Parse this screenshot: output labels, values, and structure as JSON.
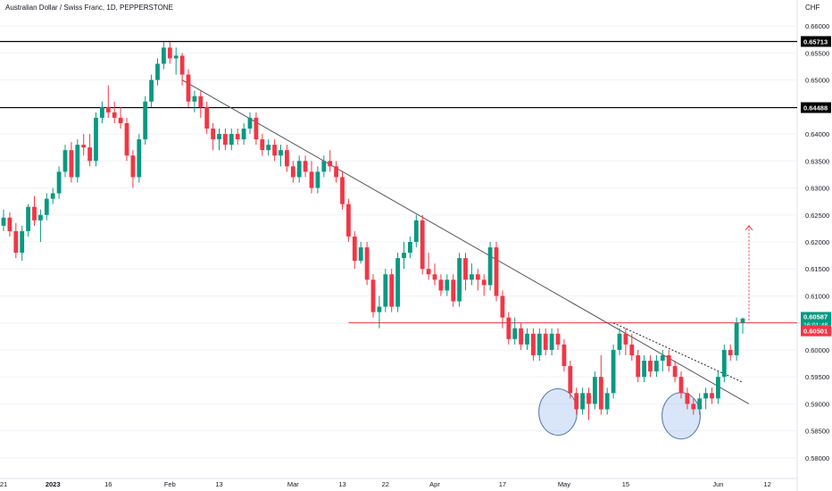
{
  "header": {
    "title": "Australian Dollar / Swiss Franc, 1D, PEPPERSTONE",
    "currency": "CHF"
  },
  "chart_data": {
    "type": "candlestick",
    "symbol": "AUDCHF",
    "timeframe": "1D",
    "ylim": [
      0.5775,
      0.6625
    ],
    "y_ticks": [
      "0.66000",
      "0.65500",
      "0.65000",
      "0.64500",
      "0.64000",
      "0.63500",
      "0.63000",
      "0.62500",
      "0.62000",
      "0.61500",
      "0.61000",
      "0.60500",
      "0.60000",
      "0.59500",
      "0.59000",
      "0.58500",
      "0.58000"
    ],
    "x_labels": [
      {
        "text": "21",
        "x": 0
      },
      {
        "text": "2023",
        "x": 8
      },
      {
        "text": "16",
        "x": 17
      },
      {
        "text": "Feb",
        "x": 27
      },
      {
        "text": "13",
        "x": 35
      },
      {
        "text": "Mar",
        "x": 47
      },
      {
        "text": "13",
        "x": 55
      },
      {
        "text": "22",
        "x": 62
      },
      {
        "text": "Apr",
        "x": 70
      },
      {
        "text": "17",
        "x": 81
      },
      {
        "text": "May",
        "x": 91
      },
      {
        "text": "15",
        "x": 101
      },
      {
        "text": "Jun",
        "x": 116
      },
      {
        "text": "12",
        "x": 124
      }
    ],
    "candles_ohlc": [
      [
        0.623,
        0.626,
        0.622,
        0.6245
      ],
      [
        0.6245,
        0.6255,
        0.621,
        0.622
      ],
      [
        0.622,
        0.6235,
        0.617,
        0.618
      ],
      [
        0.618,
        0.623,
        0.6165,
        0.622
      ],
      [
        0.622,
        0.627,
        0.621,
        0.6265
      ],
      [
        0.6265,
        0.6285,
        0.623,
        0.624
      ],
      [
        0.624,
        0.626,
        0.62,
        0.625
      ],
      [
        0.625,
        0.629,
        0.624,
        0.628
      ],
      [
        0.628,
        0.63,
        0.627,
        0.629
      ],
      [
        0.629,
        0.634,
        0.628,
        0.633
      ],
      [
        0.633,
        0.638,
        0.632,
        0.637
      ],
      [
        0.637,
        0.6385,
        0.631,
        0.632
      ],
      [
        0.632,
        0.639,
        0.631,
        0.638
      ],
      [
        0.638,
        0.64,
        0.636,
        0.6375
      ],
      [
        0.6375,
        0.64,
        0.634,
        0.635
      ],
      [
        0.635,
        0.644,
        0.634,
        0.643
      ],
      [
        0.643,
        0.646,
        0.642,
        0.645
      ],
      [
        0.645,
        0.649,
        0.643,
        0.644
      ],
      [
        0.644,
        0.646,
        0.642,
        0.643
      ],
      [
        0.643,
        0.645,
        0.641,
        0.642
      ],
      [
        0.642,
        0.643,
        0.635,
        0.636
      ],
      [
        0.636,
        0.637,
        0.63,
        0.632
      ],
      [
        0.632,
        0.64,
        0.631,
        0.639
      ],
      [
        0.639,
        0.647,
        0.638,
        0.646
      ],
      [
        0.646,
        0.651,
        0.645,
        0.65
      ],
      [
        0.65,
        0.654,
        0.649,
        0.653
      ],
      [
        0.653,
        0.657,
        0.652,
        0.656
      ],
      [
        0.656,
        0.657,
        0.653,
        0.654
      ],
      [
        0.654,
        0.656,
        0.651,
        0.6545
      ],
      [
        0.6545,
        0.655,
        0.649,
        0.651
      ],
      [
        0.651,
        0.652,
        0.645,
        0.646
      ],
      [
        0.646,
        0.648,
        0.644,
        0.647
      ],
      [
        0.647,
        0.648,
        0.643,
        0.645
      ],
      [
        0.645,
        0.646,
        0.64,
        0.641
      ],
      [
        0.641,
        0.642,
        0.637,
        0.639
      ],
      [
        0.639,
        0.641,
        0.637,
        0.64
      ],
      [
        0.64,
        0.641,
        0.637,
        0.638
      ],
      [
        0.638,
        0.641,
        0.637,
        0.64
      ],
      [
        0.64,
        0.641,
        0.638,
        0.639
      ],
      [
        0.639,
        0.642,
        0.638,
        0.641
      ],
      [
        0.641,
        0.644,
        0.64,
        0.643
      ],
      [
        0.643,
        0.644,
        0.638,
        0.639
      ],
      [
        0.639,
        0.64,
        0.636,
        0.637
      ],
      [
        0.637,
        0.639,
        0.636,
        0.638
      ],
      [
        0.638,
        0.639,
        0.635,
        0.636
      ],
      [
        0.636,
        0.638,
        0.634,
        0.637
      ],
      [
        0.637,
        0.638,
        0.633,
        0.634
      ],
      [
        0.634,
        0.635,
        0.631,
        0.632
      ],
      [
        0.632,
        0.636,
        0.631,
        0.635
      ],
      [
        0.635,
        0.636,
        0.632,
        0.633
      ],
      [
        0.633,
        0.635,
        0.629,
        0.63
      ],
      [
        0.63,
        0.634,
        0.629,
        0.633
      ],
      [
        0.633,
        0.636,
        0.632,
        0.635
      ],
      [
        0.635,
        0.637,
        0.633,
        0.634
      ],
      [
        0.634,
        0.635,
        0.631,
        0.632
      ],
      [
        0.632,
        0.633,
        0.626,
        0.627
      ],
      [
        0.627,
        0.628,
        0.62,
        0.621
      ],
      [
        0.621,
        0.622,
        0.615,
        0.6165
      ],
      [
        0.6165,
        0.62,
        0.616,
        0.619
      ],
      [
        0.619,
        0.62,
        0.612,
        0.613
      ],
      [
        0.613,
        0.614,
        0.606,
        0.607
      ],
      [
        0.607,
        0.61,
        0.604,
        0.608
      ],
      [
        0.608,
        0.615,
        0.607,
        0.614
      ],
      [
        0.614,
        0.615,
        0.607,
        0.608
      ],
      [
        0.608,
        0.618,
        0.607,
        0.617
      ],
      [
        0.617,
        0.62,
        0.615,
        0.618
      ],
      [
        0.618,
        0.621,
        0.617,
        0.62
      ],
      [
        0.62,
        0.625,
        0.619,
        0.624
      ],
      [
        0.624,
        0.625,
        0.614,
        0.615
      ],
      [
        0.615,
        0.618,
        0.613,
        0.614
      ],
      [
        0.614,
        0.616,
        0.612,
        0.613
      ],
      [
        0.613,
        0.614,
        0.61,
        0.611
      ],
      [
        0.611,
        0.614,
        0.61,
        0.613
      ],
      [
        0.613,
        0.614,
        0.608,
        0.609
      ],
      [
        0.609,
        0.618,
        0.608,
        0.617
      ],
      [
        0.617,
        0.618,
        0.611,
        0.613
      ],
      [
        0.613,
        0.616,
        0.612,
        0.614
      ],
      [
        0.614,
        0.615,
        0.611,
        0.613
      ],
      [
        0.613,
        0.614,
        0.61,
        0.612
      ],
      [
        0.612,
        0.62,
        0.611,
        0.619
      ],
      [
        0.619,
        0.62,
        0.609,
        0.61
      ],
      [
        0.61,
        0.611,
        0.604,
        0.606
      ],
      [
        0.606,
        0.607,
        0.601,
        0.602
      ],
      [
        0.602,
        0.606,
        0.601,
        0.604
      ],
      [
        0.604,
        0.605,
        0.6,
        0.601
      ],
      [
        0.601,
        0.604,
        0.6,
        0.603
      ],
      [
        0.603,
        0.604,
        0.598,
        0.599
      ],
      [
        0.599,
        0.604,
        0.598,
        0.603
      ],
      [
        0.603,
        0.604,
        0.599,
        0.6
      ],
      [
        0.6,
        0.604,
        0.599,
        0.603
      ],
      [
        0.603,
        0.604,
        0.6,
        0.601
      ],
      [
        0.601,
        0.602,
        0.596,
        0.597
      ],
      [
        0.597,
        0.598,
        0.591,
        0.592
      ],
      [
        0.592,
        0.593,
        0.588,
        0.589
      ],
      [
        0.589,
        0.593,
        0.588,
        0.592
      ],
      [
        0.592,
        0.593,
        0.587,
        0.59
      ],
      [
        0.59,
        0.596,
        0.589,
        0.595
      ],
      [
        0.595,
        0.599,
        0.588,
        0.589
      ],
      [
        0.589,
        0.593,
        0.588,
        0.592
      ],
      [
        0.592,
        0.601,
        0.591,
        0.6
      ],
      [
        0.6,
        0.604,
        0.599,
        0.603
      ],
      [
        0.603,
        0.604,
        0.599,
        0.601
      ],
      [
        0.601,
        0.603,
        0.598,
        0.599
      ],
      [
        0.599,
        0.6,
        0.594,
        0.595
      ],
      [
        0.595,
        0.599,
        0.594,
        0.598
      ],
      [
        0.598,
        0.599,
        0.595,
        0.596
      ],
      [
        0.596,
        0.599,
        0.595,
        0.598
      ],
      [
        0.598,
        0.6,
        0.596,
        0.599
      ],
      [
        0.599,
        0.6,
        0.596,
        0.597
      ],
      [
        0.597,
        0.598,
        0.594,
        0.595
      ],
      [
        0.595,
        0.596,
        0.591,
        0.592
      ],
      [
        0.592,
        0.593,
        0.589,
        0.59
      ],
      [
        0.59,
        0.591,
        0.588,
        0.589
      ],
      [
        0.589,
        0.592,
        0.588,
        0.591
      ],
      [
        0.591,
        0.593,
        0.589,
        0.592
      ],
      [
        0.592,
        0.593,
        0.59,
        0.591
      ],
      [
        0.591,
        0.596,
        0.59,
        0.595
      ],
      [
        0.595,
        0.601,
        0.594,
        0.6
      ],
      [
        0.6,
        0.601,
        0.598,
        0.599
      ],
      [
        0.599,
        0.606,
        0.598,
        0.605
      ],
      [
        0.605,
        0.606,
        0.603,
        0.6058
      ]
    ],
    "horizontal_lines": [
      {
        "price": 0.65713,
        "label": "0.65713",
        "color": "#000000",
        "style": "solid"
      },
      {
        "price": 0.64488,
        "label": "0.64488",
        "color": "#000000",
        "style": "solid"
      },
      {
        "price": 0.60501,
        "label": "0.60501",
        "color": "#f23645",
        "style": "solid"
      }
    ],
    "trendlines": [
      {
        "name": "descending-trendline",
        "from": [
          29,
          0.65
        ],
        "to": [
          121,
          0.59
        ],
        "color": "#555555",
        "style": "solid"
      },
      {
        "name": "dotted-trendline",
        "from": [
          99,
          0.605
        ],
        "to": [
          120,
          0.594
        ],
        "color": "#222222",
        "style": "dotted"
      }
    ],
    "target_arrow": {
      "x": 120,
      "from": 0.6055,
      "to": 0.623,
      "color": "#f23645"
    },
    "highlight_circles": [
      {
        "name": "left-bottom-circle",
        "x": 90,
        "y": 0.5885,
        "rx": 3.1,
        "ry": 0.0043
      },
      {
        "name": "right-bottom-circle",
        "x": 110,
        "y": 0.5878,
        "rx": 3.1,
        "ry": 0.0043
      }
    ],
    "last_price_label": {
      "price": "0.60587",
      "countdown": "16:01:48",
      "color": "#089981"
    },
    "colors": {
      "up": "#089981",
      "down": "#f23645",
      "grid": "#f0f3fa",
      "axis_text": "#131722"
    }
  }
}
